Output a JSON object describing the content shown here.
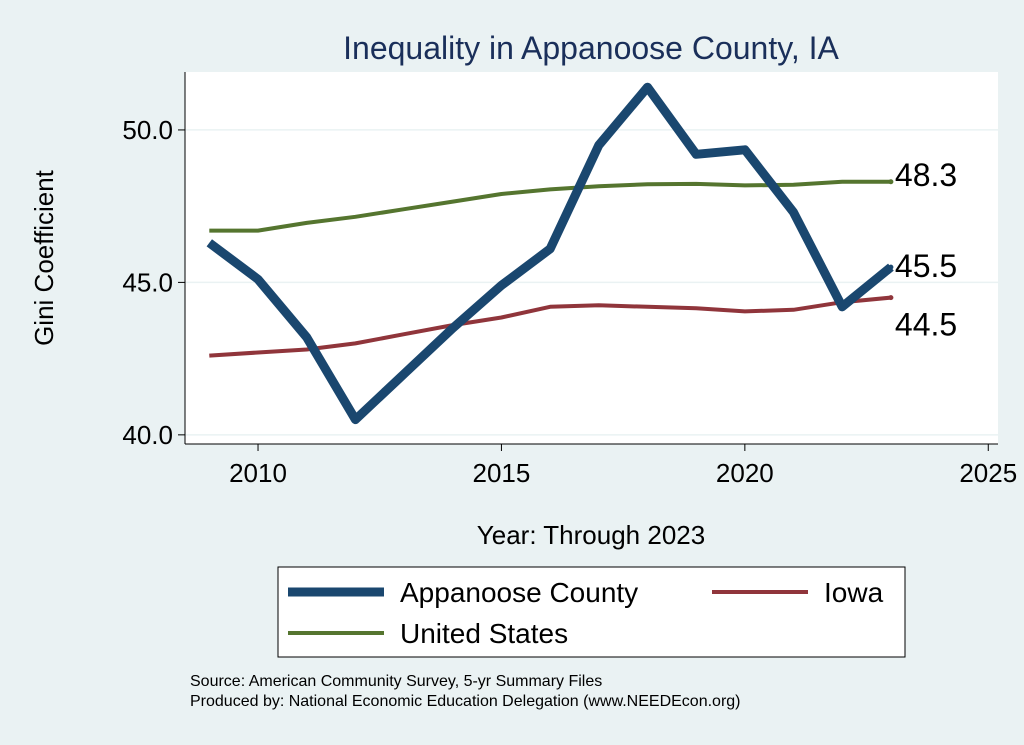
{
  "chart_data": {
    "type": "line",
    "title": "Inequality in Appanoose County, IA",
    "xlabel": "Year: Through 2023",
    "ylabel": "Gini Coefficient",
    "xlim": [
      2008.5,
      2025.2
    ],
    "ylim": [
      39.7,
      51.9
    ],
    "xticks": [
      2010,
      2015,
      2020,
      2025
    ],
    "yticks": [
      40,
      45,
      50
    ],
    "ytick_labels": [
      "40.0",
      "45.0",
      "50.0"
    ],
    "grid": true,
    "x": [
      2009,
      2010,
      2011,
      2012,
      2013,
      2014,
      2015,
      2016,
      2017,
      2018,
      2019,
      2020,
      2021,
      2022,
      2023
    ],
    "series": [
      {
        "name": "Appanoose County",
        "color": "#1a476f",
        "values": [
          46.3,
          45.1,
          43.2,
          40.5,
          42.0,
          43.5,
          44.9,
          46.1,
          49.5,
          51.4,
          49.2,
          49.35,
          47.3,
          44.2,
          45.5
        ],
        "end_label": "45.5"
      },
      {
        "name": "Iowa",
        "color": "#90353b",
        "values": [
          42.6,
          42.7,
          42.8,
          43.0,
          43.3,
          43.6,
          43.85,
          44.2,
          44.25,
          44.2,
          44.15,
          44.05,
          44.1,
          44.35,
          44.5
        ],
        "end_label": "44.5"
      },
      {
        "name": "United States",
        "color": "#55752f",
        "values": [
          46.7,
          46.7,
          46.95,
          47.15,
          47.4,
          47.65,
          47.9,
          48.05,
          48.15,
          48.22,
          48.23,
          48.18,
          48.2,
          48.3,
          48.3
        ],
        "end_label": "48.3"
      }
    ],
    "legend": {
      "placement": "bottom",
      "entries": [
        "Appanoose County",
        "Iowa",
        "United States"
      ]
    }
  },
  "source_lines": [
    "Source: American Community Survey, 5-yr Summary Files",
    "Produced by: National Economic Education Delegation (www.NEEDEcon.org)"
  ]
}
